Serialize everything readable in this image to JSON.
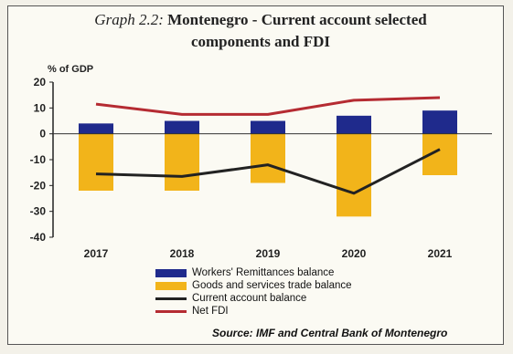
{
  "title_lead": "Graph 2.2:",
  "title_main": "Montenegro - Current account selected components and FDI",
  "source": "Source: IMF and Central Bank of Montenegro",
  "chart_data": {
    "type": "bar",
    "ylabel": "% of GDP",
    "categories": [
      "2017",
      "2018",
      "2019",
      "2020",
      "2021"
    ],
    "ylim": [
      -40,
      20
    ],
    "yticks": [
      20,
      10,
      0,
      -10,
      -20,
      -30,
      -40
    ],
    "series": [
      {
        "name": "Workers' Remittances balance",
        "kind": "bar",
        "color": "#1f2a8c",
        "values": [
          4,
          5,
          5,
          7,
          9
        ]
      },
      {
        "name": "Goods and services trade balance",
        "kind": "bar",
        "color": "#f2b41a",
        "values": [
          -22,
          -22,
          -19,
          -32,
          -16
        ]
      },
      {
        "name": "Current account balance",
        "kind": "line",
        "color": "#222222",
        "values": [
          -15.5,
          -16.5,
          -12,
          -23,
          -6
        ]
      },
      {
        "name": "Net FDI",
        "kind": "line",
        "color": "#b52b32",
        "values": [
          11.5,
          7.5,
          7.5,
          13,
          14
        ]
      }
    ]
  }
}
